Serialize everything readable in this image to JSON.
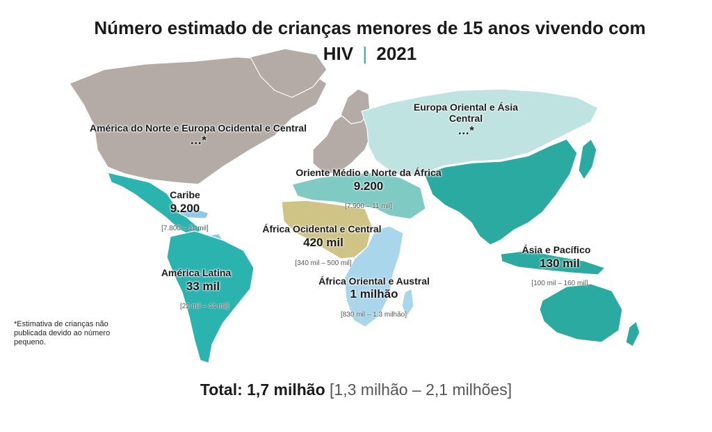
{
  "title": {
    "main": "Número estimado de crianças menores de 15 anos vivendo com",
    "line2_a": "HIV",
    "separator": "|",
    "line2_b": "2021"
  },
  "colors": {
    "north_america_europe": "#b4aba6",
    "eastern_europe_central_asia": "#bfe3e0",
    "middle_east_north_africa": "#7fcbc4",
    "caribbean": "#8ec8e6",
    "latin_america": "#2bb3b0",
    "west_central_africa": "#cfc386",
    "east_southern_africa": "#a9d6ea",
    "asia_pacific": "#2aaaa0",
    "border": "#ffffff"
  },
  "regions": {
    "na_europe": {
      "name": "América do Norte e Europa Ocidental e Central",
      "value": "…*"
    },
    "eeca": {
      "name": "Europa Oriental e Ásia Central",
      "value": "…*"
    },
    "mena": {
      "name": "Oriente Médio e Norte da África",
      "value": "9.200",
      "range": "[7.900 – 11 mil]"
    },
    "caribbean": {
      "name": "Caribe",
      "value": "9.200",
      "range": "[7.800 – 11 mil]"
    },
    "wca": {
      "name": "África Ocidental e Central",
      "value": "420 mil",
      "range": "[340 mil – 500 mil]"
    },
    "latin_america": {
      "name": "América Latina",
      "value": "33 mil",
      "range": "[22 mil – 44 mil]"
    },
    "esa": {
      "name": "África Oriental e Austral",
      "value": "1 milhão",
      "range": "[830 mil – 1.3 milhão]"
    },
    "asia_pacific": {
      "name": "Ásia e Pacífico",
      "value": "130 mil",
      "range": "[100 mil – 160 mil]"
    }
  },
  "footnote": "*Estimativa de crianças não publicada devido ao número pequeno.",
  "total": {
    "label": "Total: 1,7 milhão",
    "range": "[1,3 milhão – 2,1 milhões]"
  }
}
